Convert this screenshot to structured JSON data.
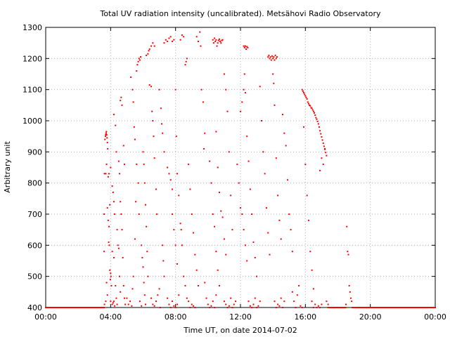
{
  "chart_data": {
    "type": "scatter",
    "title": "Total UV radiation intensity (uncalibrated). Metsähovi Radio Observatory",
    "xlabel": "Time UT, on date 2014-07-02",
    "ylabel": "Arbitrary unit",
    "xlim": [
      0,
      24
    ],
    "ylim": [
      400,
      1300
    ],
    "grid": true,
    "marker_color": "#ff0000",
    "x_ticks": [
      {
        "value": 0,
        "label": "00:00"
      },
      {
        "value": 4,
        "label": "04:00"
      },
      {
        "value": 8,
        "label": "08:00"
      },
      {
        "value": 12,
        "label": "12:00"
      },
      {
        "value": 16,
        "label": "16:00"
      },
      {
        "value": 20,
        "label": "20:00"
      },
      {
        "value": 24,
        "label": "00:00"
      }
    ],
    "y_ticks": [
      {
        "value": 400,
        "label": "400"
      },
      {
        "value": 500,
        "label": "500"
      },
      {
        "value": 600,
        "label": "600"
      },
      {
        "value": 700,
        "label": "700"
      },
      {
        "value": 800,
        "label": "800"
      },
      {
        "value": 900,
        "label": "900"
      },
      {
        "value": 1000,
        "label": "1000"
      },
      {
        "value": 1100,
        "label": "1100"
      },
      {
        "value": 1200,
        "label": "1200"
      },
      {
        "value": 1300,
        "label": "1300"
      }
    ],
    "points": [
      [
        0.0,
        400
      ],
      [
        0.5,
        400
      ],
      [
        1.0,
        400
      ],
      [
        1.5,
        400
      ],
      [
        2.0,
        400
      ],
      [
        2.5,
        400
      ],
      [
        3.0,
        400
      ],
      [
        3.4,
        400
      ],
      [
        3.6,
        400
      ],
      [
        3.62,
        410
      ],
      [
        3.6,
        580
      ],
      [
        3.6,
        700
      ],
      [
        3.62,
        830
      ],
      [
        3.65,
        940
      ],
      [
        3.68,
        950
      ],
      [
        3.7,
        955
      ],
      [
        3.72,
        960
      ],
      [
        3.74,
        965
      ],
      [
        3.76,
        955
      ],
      [
        3.78,
        945
      ],
      [
        3.8,
        930
      ],
      [
        3.82,
        910
      ],
      [
        3.7,
        830
      ],
      [
        3.75,
        860
      ],
      [
        3.85,
        820
      ],
      [
        3.9,
        830
      ],
      [
        3.8,
        720
      ],
      [
        3.85,
        680
      ],
      [
        3.9,
        660
      ],
      [
        3.88,
        610
      ],
      [
        3.92,
        600
      ],
      [
        3.95,
        730
      ],
      [
        4.0,
        850
      ],
      [
        3.95,
        520
      ],
      [
        4.0,
        510
      ],
      [
        4.02,
        500
      ],
      [
        3.98,
        490
      ],
      [
        4.05,
        470
      ],
      [
        4.0,
        420
      ],
      [
        4.1,
        410
      ],
      [
        3.8,
        440
      ],
      [
        3.7,
        420
      ],
      [
        3.75,
        480
      ],
      [
        4.15,
        415
      ],
      [
        4.2,
        420
      ],
      [
        4.25,
        405
      ],
      [
        4.1,
        790
      ],
      [
        4.15,
        770
      ],
      [
        4.2,
        740
      ],
      [
        4.25,
        700
      ],
      [
        4.2,
        560
      ],
      [
        4.1,
        580
      ],
      [
        4.3,
        470
      ],
      [
        4.35,
        430
      ],
      [
        4.4,
        410
      ],
      [
        4.2,
        1020
      ],
      [
        4.3,
        985
      ],
      [
        4.35,
        900
      ],
      [
        4.4,
        650
      ],
      [
        4.45,
        600
      ],
      [
        4.5,
        590
      ],
      [
        4.55,
        500
      ],
      [
        4.6,
        450
      ],
      [
        4.5,
        870
      ],
      [
        4.55,
        830
      ],
      [
        4.6,
        740
      ],
      [
        4.65,
        700
      ],
      [
        4.7,
        650
      ],
      [
        4.75,
        560
      ],
      [
        4.8,
        470
      ],
      [
        4.85,
        430
      ],
      [
        4.9,
        410
      ],
      [
        4.6,
        1065
      ],
      [
        4.65,
        1075
      ],
      [
        4.7,
        1050
      ],
      [
        4.8,
        920
      ],
      [
        4.85,
        860
      ],
      [
        5.0,
        430
      ],
      [
        5.1,
        410
      ],
      [
        5.2,
        420
      ],
      [
        5.3,
        405
      ],
      [
        5.35,
        460
      ],
      [
        5.4,
        500
      ],
      [
        5.5,
        620
      ],
      [
        5.55,
        740
      ],
      [
        5.25,
        1140
      ],
      [
        5.35,
        1100
      ],
      [
        5.4,
        1060
      ],
      [
        5.45,
        980
      ],
      [
        5.5,
        940
      ],
      [
        5.6,
        860
      ],
      [
        5.7,
        800
      ],
      [
        5.75,
        700
      ],
      [
        5.6,
        1160
      ],
      [
        5.65,
        1180
      ],
      [
        5.7,
        1190
      ],
      [
        5.75,
        1200
      ],
      [
        5.8,
        1195
      ],
      [
        5.85,
        1205
      ],
      [
        5.9,
        600
      ],
      [
        5.95,
        560
      ],
      [
        6.0,
        530
      ],
      [
        6.05,
        480
      ],
      [
        6.1,
        440
      ],
      [
        6.15,
        410
      ],
      [
        5.8,
        420
      ],
      [
        5.9,
        405
      ],
      [
        6.0,
        900
      ],
      [
        6.05,
        860
      ],
      [
        6.1,
        800
      ],
      [
        6.15,
        730
      ],
      [
        6.2,
        660
      ],
      [
        6.25,
        580
      ],
      [
        6.3,
        500
      ],
      [
        6.2,
        1210
      ],
      [
        6.3,
        1215
      ],
      [
        6.35,
        1225
      ],
      [
        6.4,
        1230
      ],
      [
        6.5,
        1240
      ],
      [
        6.6,
        1250
      ],
      [
        6.7,
        1240
      ],
      [
        6.4,
        1115
      ],
      [
        6.5,
        1110
      ],
      [
        6.55,
        1030
      ],
      [
        6.6,
        1000
      ],
      [
        6.65,
        950
      ],
      [
        6.7,
        880
      ],
      [
        6.8,
        780
      ],
      [
        6.85,
        700
      ],
      [
        6.5,
        430
      ],
      [
        6.6,
        410
      ],
      [
        6.7,
        405
      ],
      [
        6.8,
        420
      ],
      [
        6.9,
        440
      ],
      [
        7.0,
        460
      ],
      [
        7.05,
        400
      ],
      [
        7.0,
        1100
      ],
      [
        7.1,
        1040
      ],
      [
        7.15,
        990
      ],
      [
        7.2,
        960
      ],
      [
        7.3,
        900
      ],
      [
        7.2,
        600
      ],
      [
        7.25,
        550
      ],
      [
        7.3,
        500
      ],
      [
        7.3,
        1250
      ],
      [
        7.4,
        1260
      ],
      [
        7.5,
        1255
      ],
      [
        7.6,
        1265
      ],
      [
        7.7,
        1270
      ],
      [
        7.8,
        1255
      ],
      [
        7.9,
        1260
      ],
      [
        7.5,
        850
      ],
      [
        7.6,
        830
      ],
      [
        7.7,
        810
      ],
      [
        7.8,
        780
      ],
      [
        7.8,
        700
      ],
      [
        7.9,
        650
      ],
      [
        8.0,
        600
      ],
      [
        8.1,
        540
      ],
      [
        7.5,
        430
      ],
      [
        7.6,
        410
      ],
      [
        7.7,
        400
      ],
      [
        7.8,
        420
      ],
      [
        7.9,
        405
      ],
      [
        8.0,
        400
      ],
      [
        8.1,
        410
      ],
      [
        8.2,
        440
      ],
      [
        8.0,
        1100
      ],
      [
        8.05,
        950
      ],
      [
        8.1,
        830
      ],
      [
        8.2,
        760
      ],
      [
        8.3,
        670
      ],
      [
        8.35,
        650
      ],
      [
        8.4,
        600
      ],
      [
        8.3,
        1260
      ],
      [
        8.4,
        1275
      ],
      [
        8.5,
        1270
      ],
      [
        8.6,
        1180
      ],
      [
        8.65,
        1190
      ],
      [
        8.7,
        1200
      ],
      [
        8.5,
        500
      ],
      [
        8.6,
        470
      ],
      [
        8.7,
        430
      ],
      [
        8.8,
        420
      ],
      [
        8.9,
        400
      ],
      [
        9.0,
        410
      ],
      [
        9.1,
        405
      ],
      [
        9.2,
        400
      ],
      [
        8.8,
        860
      ],
      [
        8.9,
        780
      ],
      [
        9.0,
        700
      ],
      [
        9.1,
        640
      ],
      [
        9.2,
        570
      ],
      [
        9.3,
        520
      ],
      [
        9.4,
        470
      ],
      [
        9.3,
        1270
      ],
      [
        9.4,
        1255
      ],
      [
        9.5,
        1285
      ],
      [
        9.55,
        1240
      ],
      [
        9.6,
        1100
      ],
      [
        9.7,
        1060
      ],
      [
        9.8,
        960
      ],
      [
        9.75,
        910
      ],
      [
        9.8,
        480
      ],
      [
        9.9,
        430
      ],
      [
        10.0,
        410
      ],
      [
        10.1,
        400
      ],
      [
        10.2,
        405
      ],
      [
        10.3,
        420
      ],
      [
        10.4,
        400
      ],
      [
        10.5,
        440
      ],
      [
        10.1,
        870
      ],
      [
        10.2,
        800
      ],
      [
        10.3,
        700
      ],
      [
        10.4,
        660
      ],
      [
        10.5,
        580
      ],
      [
        10.6,
        520
      ],
      [
        10.7,
        470
      ],
      [
        10.3,
        1260
      ],
      [
        10.35,
        1250
      ],
      [
        10.4,
        1265
      ],
      [
        10.45,
        1255
      ],
      [
        10.5,
        1260
      ],
      [
        10.55,
        1240
      ],
      [
        10.6,
        1250
      ],
      [
        10.65,
        1258
      ],
      [
        10.7,
        1262
      ],
      [
        10.75,
        1255
      ],
      [
        10.8,
        1250
      ],
      [
        10.85,
        1258
      ],
      [
        10.9,
        1260
      ],
      [
        10.5,
        965
      ],
      [
        10.6,
        850
      ],
      [
        10.7,
        770
      ],
      [
        10.8,
        710
      ],
      [
        10.9,
        690
      ],
      [
        11.0,
        620
      ],
      [
        11.1,
        570
      ],
      [
        11.0,
        1150
      ],
      [
        11.1,
        1100
      ],
      [
        11.2,
        1030
      ],
      [
        11.3,
        900
      ],
      [
        11.4,
        760
      ],
      [
        11.5,
        650
      ],
      [
        11.0,
        420
      ],
      [
        11.1,
        410
      ],
      [
        11.2,
        400
      ],
      [
        11.3,
        405
      ],
      [
        11.4,
        430
      ],
      [
        11.5,
        400
      ],
      [
        11.6,
        410
      ],
      [
        11.7,
        420
      ],
      [
        11.8,
        860
      ],
      [
        11.9,
        800
      ],
      [
        12.0,
        720
      ],
      [
        12.1,
        700
      ],
      [
        12.2,
        650
      ],
      [
        12.3,
        600
      ],
      [
        12.4,
        550
      ],
      [
        12.0,
        1030
      ],
      [
        12.1,
        1060
      ],
      [
        12.2,
        1100
      ],
      [
        12.25,
        1150
      ],
      [
        12.3,
        1090
      ],
      [
        12.2,
        1240
      ],
      [
        12.25,
        1235
      ],
      [
        12.3,
        1240
      ],
      [
        12.35,
        1230
      ],
      [
        12.4,
        1238
      ],
      [
        12.45,
        1235
      ],
      [
        12.4,
        950
      ],
      [
        12.5,
        870
      ],
      [
        12.6,
        780
      ],
      [
        12.7,
        700
      ],
      [
        12.8,
        610
      ],
      [
        12.9,
        560
      ],
      [
        13.0,
        500
      ],
      [
        12.5,
        420
      ],
      [
        12.6,
        405
      ],
      [
        12.7,
        400
      ],
      [
        12.8,
        410
      ],
      [
        12.9,
        430
      ],
      [
        13.0,
        400
      ],
      [
        13.1,
        405
      ],
      [
        13.2,
        420
      ],
      [
        13.2,
        1110
      ],
      [
        13.3,
        1000
      ],
      [
        13.4,
        900
      ],
      [
        13.5,
        830
      ],
      [
        13.6,
        720
      ],
      [
        13.7,
        640
      ],
      [
        13.8,
        570
      ],
      [
        13.7,
        1205
      ],
      [
        13.75,
        1210
      ],
      [
        13.8,
        1200
      ],
      [
        13.85,
        1205
      ],
      [
        13.9,
        1195
      ],
      [
        13.95,
        1208
      ],
      [
        14.0,
        1200
      ],
      [
        14.05,
        1205
      ],
      [
        14.1,
        1195
      ],
      [
        14.15,
        1210
      ],
      [
        14.2,
        1200
      ],
      [
        14.25,
        1205
      ],
      [
        14.0,
        1150
      ],
      [
        14.05,
        1120
      ],
      [
        14.1,
        1050
      ],
      [
        14.2,
        880
      ],
      [
        14.3,
        760
      ],
      [
        14.4,
        680
      ],
      [
        14.5,
        620
      ],
      [
        14.1,
        420
      ],
      [
        14.2,
        400
      ],
      [
        14.3,
        410
      ],
      [
        14.4,
        405
      ],
      [
        14.5,
        430
      ],
      [
        14.6,
        400
      ],
      [
        14.7,
        420
      ],
      [
        14.6,
        1020
      ],
      [
        14.7,
        960
      ],
      [
        14.8,
        920
      ],
      [
        14.9,
        810
      ],
      [
        15.0,
        700
      ],
      [
        15.1,
        650
      ],
      [
        15.2,
        580
      ],
      [
        15.2,
        450
      ],
      [
        15.3,
        420
      ],
      [
        15.4,
        400
      ],
      [
        15.5,
        440
      ],
      [
        15.6,
        470
      ],
      [
        15.7,
        405
      ],
      [
        15.8,
        400
      ],
      [
        15.8,
        1100
      ],
      [
        15.85,
        1095
      ],
      [
        15.9,
        1090
      ],
      [
        15.95,
        1085
      ],
      [
        16.0,
        1080
      ],
      [
        16.05,
        1075
      ],
      [
        16.1,
        1070
      ],
      [
        16.15,
        1060
      ],
      [
        16.2,
        1055
      ],
      [
        16.25,
        1050
      ],
      [
        16.3,
        1048
      ],
      [
        16.35,
        1042
      ],
      [
        16.4,
        1040
      ],
      [
        16.45,
        1035
      ],
      [
        16.5,
        1030
      ],
      [
        16.55,
        1025
      ],
      [
        16.6,
        1018
      ],
      [
        16.65,
        1010
      ],
      [
        16.7,
        1005
      ],
      [
        16.75,
        998
      ],
      [
        16.8,
        990
      ],
      [
        16.85,
        980
      ],
      [
        16.9,
        968
      ],
      [
        16.95,
        958
      ],
      [
        17.0,
        948
      ],
      [
        17.05,
        938
      ],
      [
        17.1,
        928
      ],
      [
        17.15,
        918
      ],
      [
        17.2,
        908
      ],
      [
        17.25,
        898
      ],
      [
        17.3,
        888
      ],
      [
        15.9,
        980
      ],
      [
        16.0,
        860
      ],
      [
        16.1,
        760
      ],
      [
        16.2,
        680
      ],
      [
        16.3,
        580
      ],
      [
        16.4,
        520
      ],
      [
        16.5,
        460
      ],
      [
        16.4,
        420
      ],
      [
        16.5,
        400
      ],
      [
        16.6,
        410
      ],
      [
        16.7,
        400
      ],
      [
        16.8,
        405
      ],
      [
        16.9,
        400
      ],
      [
        17.0,
        410
      ],
      [
        16.9,
        840
      ],
      [
        17.0,
        880
      ],
      [
        17.1,
        860
      ],
      [
        17.2,
        910
      ],
      [
        17.3,
        420
      ],
      [
        17.4,
        410
      ],
      [
        17.5,
        400
      ],
      [
        17.6,
        400
      ],
      [
        17.8,
        400
      ],
      [
        18.0,
        400
      ],
      [
        18.2,
        400
      ],
      [
        18.4,
        400
      ],
      [
        18.5,
        410
      ],
      [
        18.55,
        660
      ],
      [
        18.6,
        580
      ],
      [
        18.65,
        570
      ],
      [
        18.7,
        470
      ],
      [
        18.75,
        450
      ],
      [
        18.8,
        430
      ],
      [
        18.85,
        420
      ],
      [
        18.9,
        400
      ],
      [
        19.0,
        400
      ],
      [
        19.5,
        400
      ],
      [
        20.0,
        400
      ],
      [
        20.5,
        400
      ],
      [
        21.0,
        400
      ],
      [
        21.5,
        400
      ],
      [
        22.0,
        400
      ],
      [
        22.5,
        400
      ],
      [
        23.0,
        400
      ],
      [
        23.5,
        400
      ],
      [
        24.0,
        400
      ]
    ]
  }
}
